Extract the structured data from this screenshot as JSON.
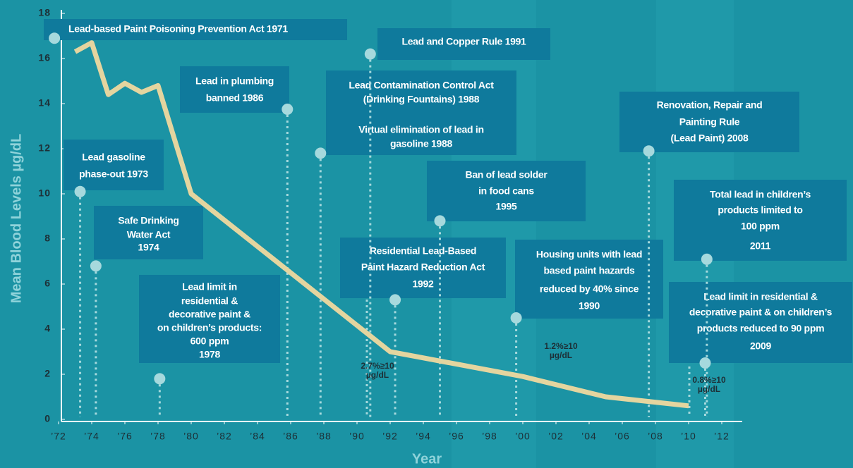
{
  "chart_data": {
    "type": "line",
    "x_label": "Year",
    "y_label": "Mean Blood Levels µg/dL",
    "x": [
      1973,
      1974,
      1975,
      1976,
      1977,
      1978,
      1980,
      1992,
      2000,
      2005,
      2010
    ],
    "values": [
      16.3,
      16.7,
      14.4,
      14.9,
      14.5,
      14.8,
      10.0,
      3.0,
      1.9,
      1.0,
      0.6
    ],
    "color": "#e4d59f",
    "xlim": [
      1972,
      2013
    ],
    "ylim": [
      0,
      18
    ],
    "yticks": [
      0,
      2,
      4,
      6,
      8,
      10,
      12,
      14,
      16,
      18
    ],
    "xticks": [
      {
        "value": 1972,
        "label": "’72"
      },
      {
        "value": 1974,
        "label": "’74"
      },
      {
        "value": 1976,
        "label": "’76"
      },
      {
        "value": 1978,
        "label": "’78"
      },
      {
        "value": 1980,
        "label": "’80"
      },
      {
        "value": 1982,
        "label": "’82"
      },
      {
        "value": 1984,
        "label": "’84"
      },
      {
        "value": 1986,
        "label": "’86"
      },
      {
        "value": 1988,
        "label": "’88"
      },
      {
        "value": 1990,
        "label": "’90"
      },
      {
        "value": 1992,
        "label": "’92"
      },
      {
        "value": 1994,
        "label": "’94"
      },
      {
        "value": 1996,
        "label": "’96"
      },
      {
        "value": 1998,
        "label": "’98"
      },
      {
        "value": 2000,
        "label": "’00"
      },
      {
        "value": 2002,
        "label": "’02"
      },
      {
        "value": 2004,
        "label": "’04"
      },
      {
        "value": 2006,
        "label": "’06"
      },
      {
        "value": 2008,
        "label": "’08"
      },
      {
        "value": 2010,
        "label": "’10"
      },
      {
        "value": 2012,
        "label": "’12"
      }
    ],
    "annotations": [
      {
        "x": 1971.75,
        "y": 16.9,
        "lines": [
          "Lead-based Paint Poisoning Prevention Act  1971"
        ]
      },
      {
        "x": 1973.3,
        "y": 10.1,
        "lines": [
          "Lead gasoline",
          "phase-out 1973"
        ]
      },
      {
        "x": 1974.25,
        "y": 6.8,
        "lines": [
          "Safe Drinking",
          "Water Act",
          "1974"
        ]
      },
      {
        "x": 1978.1,
        "y": 1.8,
        "lines": [
          "Lead limit in",
          "residential &",
          "decorative paint &",
          "on children’s products:",
          "600 ppm",
          "1978"
        ]
      },
      {
        "x": 1985.8,
        "y": 13.75,
        "lines": [
          "Lead in plumbing",
          "banned 1986"
        ]
      },
      {
        "x": 1987.8,
        "y": 11.8,
        "lines": [
          "Lead Contamination Control Act",
          "(Drinking Fountains) 1988",
          "Virtual elimination of lead in",
          "gasoline 1988"
        ]
      },
      {
        "x": 1990.8,
        "y": 16.2,
        "lines": [
          "Lead and Copper Rule 1991"
        ]
      },
      {
        "x": 1992.3,
        "y": 5.3,
        "lines": [
          "Residential Lead-Based",
          "Paint Hazard Reduction Act",
          "1992"
        ]
      },
      {
        "x": 1995.0,
        "y": 8.8,
        "lines": [
          "Ban of lead solder",
          "in food cans",
          "1995"
        ]
      },
      {
        "x": 1999.6,
        "y": 4.5,
        "lines": [
          "Housing units with lead",
          "based paint hazards",
          "reduced by 40% since",
          "1990"
        ]
      },
      {
        "x": 2007.6,
        "y": 11.9,
        "lines": [
          "Renovation, Repair and",
          "Painting Rule",
          "(Lead Paint) 2008"
        ]
      },
      {
        "x": 2011.1,
        "y": 7.1,
        "lines": [
          "Total lead in children’s",
          "products limited to",
          "100 ppm",
          "2011"
        ]
      },
      {
        "x": 2011.0,
        "y": 2.5,
        "lines": [
          "Lead limit in residential &",
          "decorative paint & on children’s",
          "products reduced to 90 ppm",
          "2009"
        ]
      }
    ],
    "notes": [
      {
        "lines": [
          "2.7%≥10",
          "µg/dL"
        ]
      },
      {
        "lines": [
          "1.2%≥10",
          "µg/dL"
        ]
      },
      {
        "lines": [
          "0.8%≥10",
          "µg/dL"
        ]
      }
    ]
  }
}
